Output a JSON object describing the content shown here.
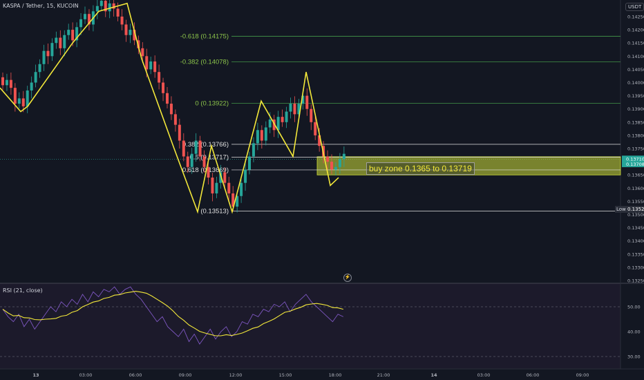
{
  "header": {
    "symbol": "KASPA / Tether, 15, KUCOIN",
    "currency": "USDT"
  },
  "price_axis": {
    "labels": [
      "0.14250",
      "0.14200",
      "0.14150",
      "0.14100",
      "0.14050",
      "0.14000",
      "0.13950",
      "0.13900",
      "0.13850",
      "0.13800",
      "0.13750",
      "0.13700",
      "0.13650",
      "0.13600",
      "0.13550",
      "0.13500",
      "0.13450",
      "0.13400",
      "0.13350",
      "0.13300",
      "0.13250"
    ],
    "last_price": "0.13710",
    "last_price_alt": "0.13708"
  },
  "time_axis": {
    "labels": [
      "13",
      "03:00",
      "06:00",
      "09:00",
      "12:00",
      "15:00",
      "18:00",
      "21:00",
      "14",
      "03:00",
      "06:00",
      "09:00"
    ]
  },
  "fib_levels": [
    {
      "label": "-0.618 (0.14175)",
      "value": 0.14175
    },
    {
      "label": "-0.382 (0.14078)",
      "value": 0.14078
    },
    {
      "label": "0 (0.13922)",
      "value": 0.13922
    },
    {
      "label": "0.382 (0.13766)",
      "value": 0.13766
    },
    {
      "label": "0.5 (0.13717)",
      "value": 0.13717
    },
    {
      "label": "0.618 (0.13669)",
      "value": 0.13669
    },
    {
      "label": "(0.13513)",
      "value": 0.13513
    }
  ],
  "buy_zone": {
    "label": "buy zone 0.1365 to 0.13719",
    "low": 0.1365,
    "high": 0.13719,
    "color": "#d4e157"
  },
  "low_marker": {
    "label": "Low",
    "value": "0.13521"
  },
  "rsi": {
    "title": "RSI (21, close)",
    "axis_labels": [
      "50.00",
      "40.00",
      "30.00"
    ],
    "upper_band": 70,
    "lower_band": 30
  },
  "colors": {
    "background": "#131722",
    "bull": "#26a69a",
    "bear": "#ef5350",
    "zigzag": "#f3e83a",
    "fib": "#4caf50",
    "rsi_line": "#7e57c2",
    "rsi_ma": "#f3e83a"
  },
  "icons": {
    "replay": "lightning-icon"
  }
}
